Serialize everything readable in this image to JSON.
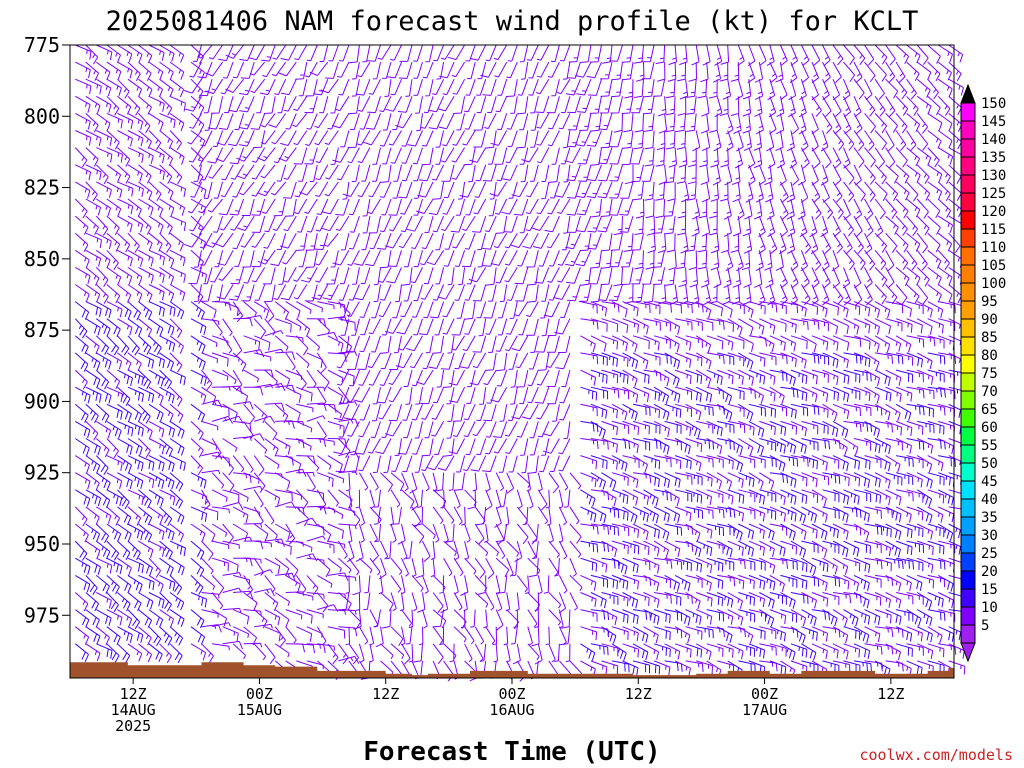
{
  "chart_data": {
    "type": "wind_barb_time_height",
    "title": "2025081406 NAM forecast wind profile (kt) for KCLT",
    "xlabel": "Forecast Time (UTC)",
    "ylabel": "",
    "y_ticks": [
      775,
      800,
      825,
      850,
      875,
      900,
      925,
      950,
      975
    ],
    "y_range": [
      775,
      997
    ],
    "x_range_hours_from_init": [
      0,
      84
    ],
    "x_ticks": [
      {
        "hour": 6,
        "lines": [
          "12Z",
          "14AUG",
          "2025"
        ]
      },
      {
        "hour": 18,
        "lines": [
          "00Z",
          "15AUG"
        ]
      },
      {
        "hour": 30,
        "lines": [
          "12Z"
        ]
      },
      {
        "hour": 42,
        "lines": [
          "00Z",
          "16AUG"
        ]
      },
      {
        "hour": 54,
        "lines": [
          "12Z"
        ]
      },
      {
        "hour": 66,
        "lines": [
          "00Z",
          "17AUG"
        ]
      },
      {
        "hour": 78,
        "lines": [
          "12Z"
        ]
      }
    ],
    "barb_levels_mb": [
      775,
      781,
      787,
      793,
      799,
      805,
      811,
      817,
      823,
      829,
      835,
      841,
      847,
      853,
      859,
      865,
      871,
      877,
      883,
      889,
      895,
      901,
      907,
      913,
      919,
      925,
      931,
      937,
      943,
      949,
      955,
      961,
      967,
      973,
      979,
      985,
      991
    ],
    "surface_pressure_mb": [
      [
        0,
        991.5
      ],
      [
        5.5,
        991.5
      ],
      [
        5.5,
        992.5
      ],
      [
        12.5,
        992.5
      ],
      [
        12.5,
        991.5
      ],
      [
        16.5,
        991.5
      ],
      [
        16.5,
        992.5
      ],
      [
        19.5,
        992.5
      ],
      [
        19.5,
        993
      ],
      [
        23.5,
        993
      ],
      [
        23.5,
        994.5
      ],
      [
        30,
        994.5
      ],
      [
        30,
        995.5
      ],
      [
        32.5,
        995.5
      ],
      [
        32.5,
        996
      ],
      [
        34,
        996
      ],
      [
        34,
        995.5
      ],
      [
        38,
        995.5
      ],
      [
        38,
        994.5
      ],
      [
        43.5,
        994.5
      ],
      [
        43.5,
        995.5
      ],
      [
        53.5,
        995.5
      ],
      [
        53.5,
        996
      ],
      [
        59.5,
        996
      ],
      [
        59.5,
        995.5
      ],
      [
        62.5,
        995.5
      ],
      [
        62.5,
        994.5
      ],
      [
        66.5,
        994.5
      ],
      [
        66.5,
        995.5
      ],
      [
        69.5,
        995.5
      ],
      [
        69.5,
        994.5
      ],
      [
        76.5,
        994.5
      ],
      [
        76.5,
        995.5
      ],
      [
        81.5,
        995.5
      ],
      [
        81.5,
        994.5
      ],
      [
        83.5,
        994.5
      ],
      [
        83.5,
        993.5
      ],
      [
        84,
        993.5
      ]
    ],
    "terrain_color": "#a0522d",
    "colorbar": {
      "labels": [
        "5",
        "10",
        "15",
        "20",
        "25",
        "30",
        "35",
        "40",
        "45",
        "50",
        "55",
        "60",
        "65",
        "70",
        "75",
        "80",
        "85",
        "90",
        "95",
        "100",
        "105",
        "110",
        "115",
        "120",
        "125",
        "130",
        "135",
        "140",
        "145",
        "150"
      ],
      "colors": [
        "#a020f0",
        "#7f00ff",
        "#4000ff",
        "#0000ff",
        "#0040ff",
        "#0080ff",
        "#00a0ff",
        "#00c0ff",
        "#00e0ff",
        "#00ffcc",
        "#00ff80",
        "#00ff40",
        "#40ff00",
        "#80ff00",
        "#c0ff00",
        "#ffff00",
        "#ffe000",
        "#ffc000",
        "#ffa000",
        "#ff9000",
        "#ff8000",
        "#ff7000",
        "#ff4000",
        "#ff0000",
        "#ff0040",
        "#ff0060",
        "#ff0080",
        "#ff00a0",
        "#ff00c0",
        "#ff00ff"
      ]
    },
    "barb_color": "#7f00ff",
    "barb_color_strong": "#4000ff",
    "credit": "coolwx.com/models"
  }
}
